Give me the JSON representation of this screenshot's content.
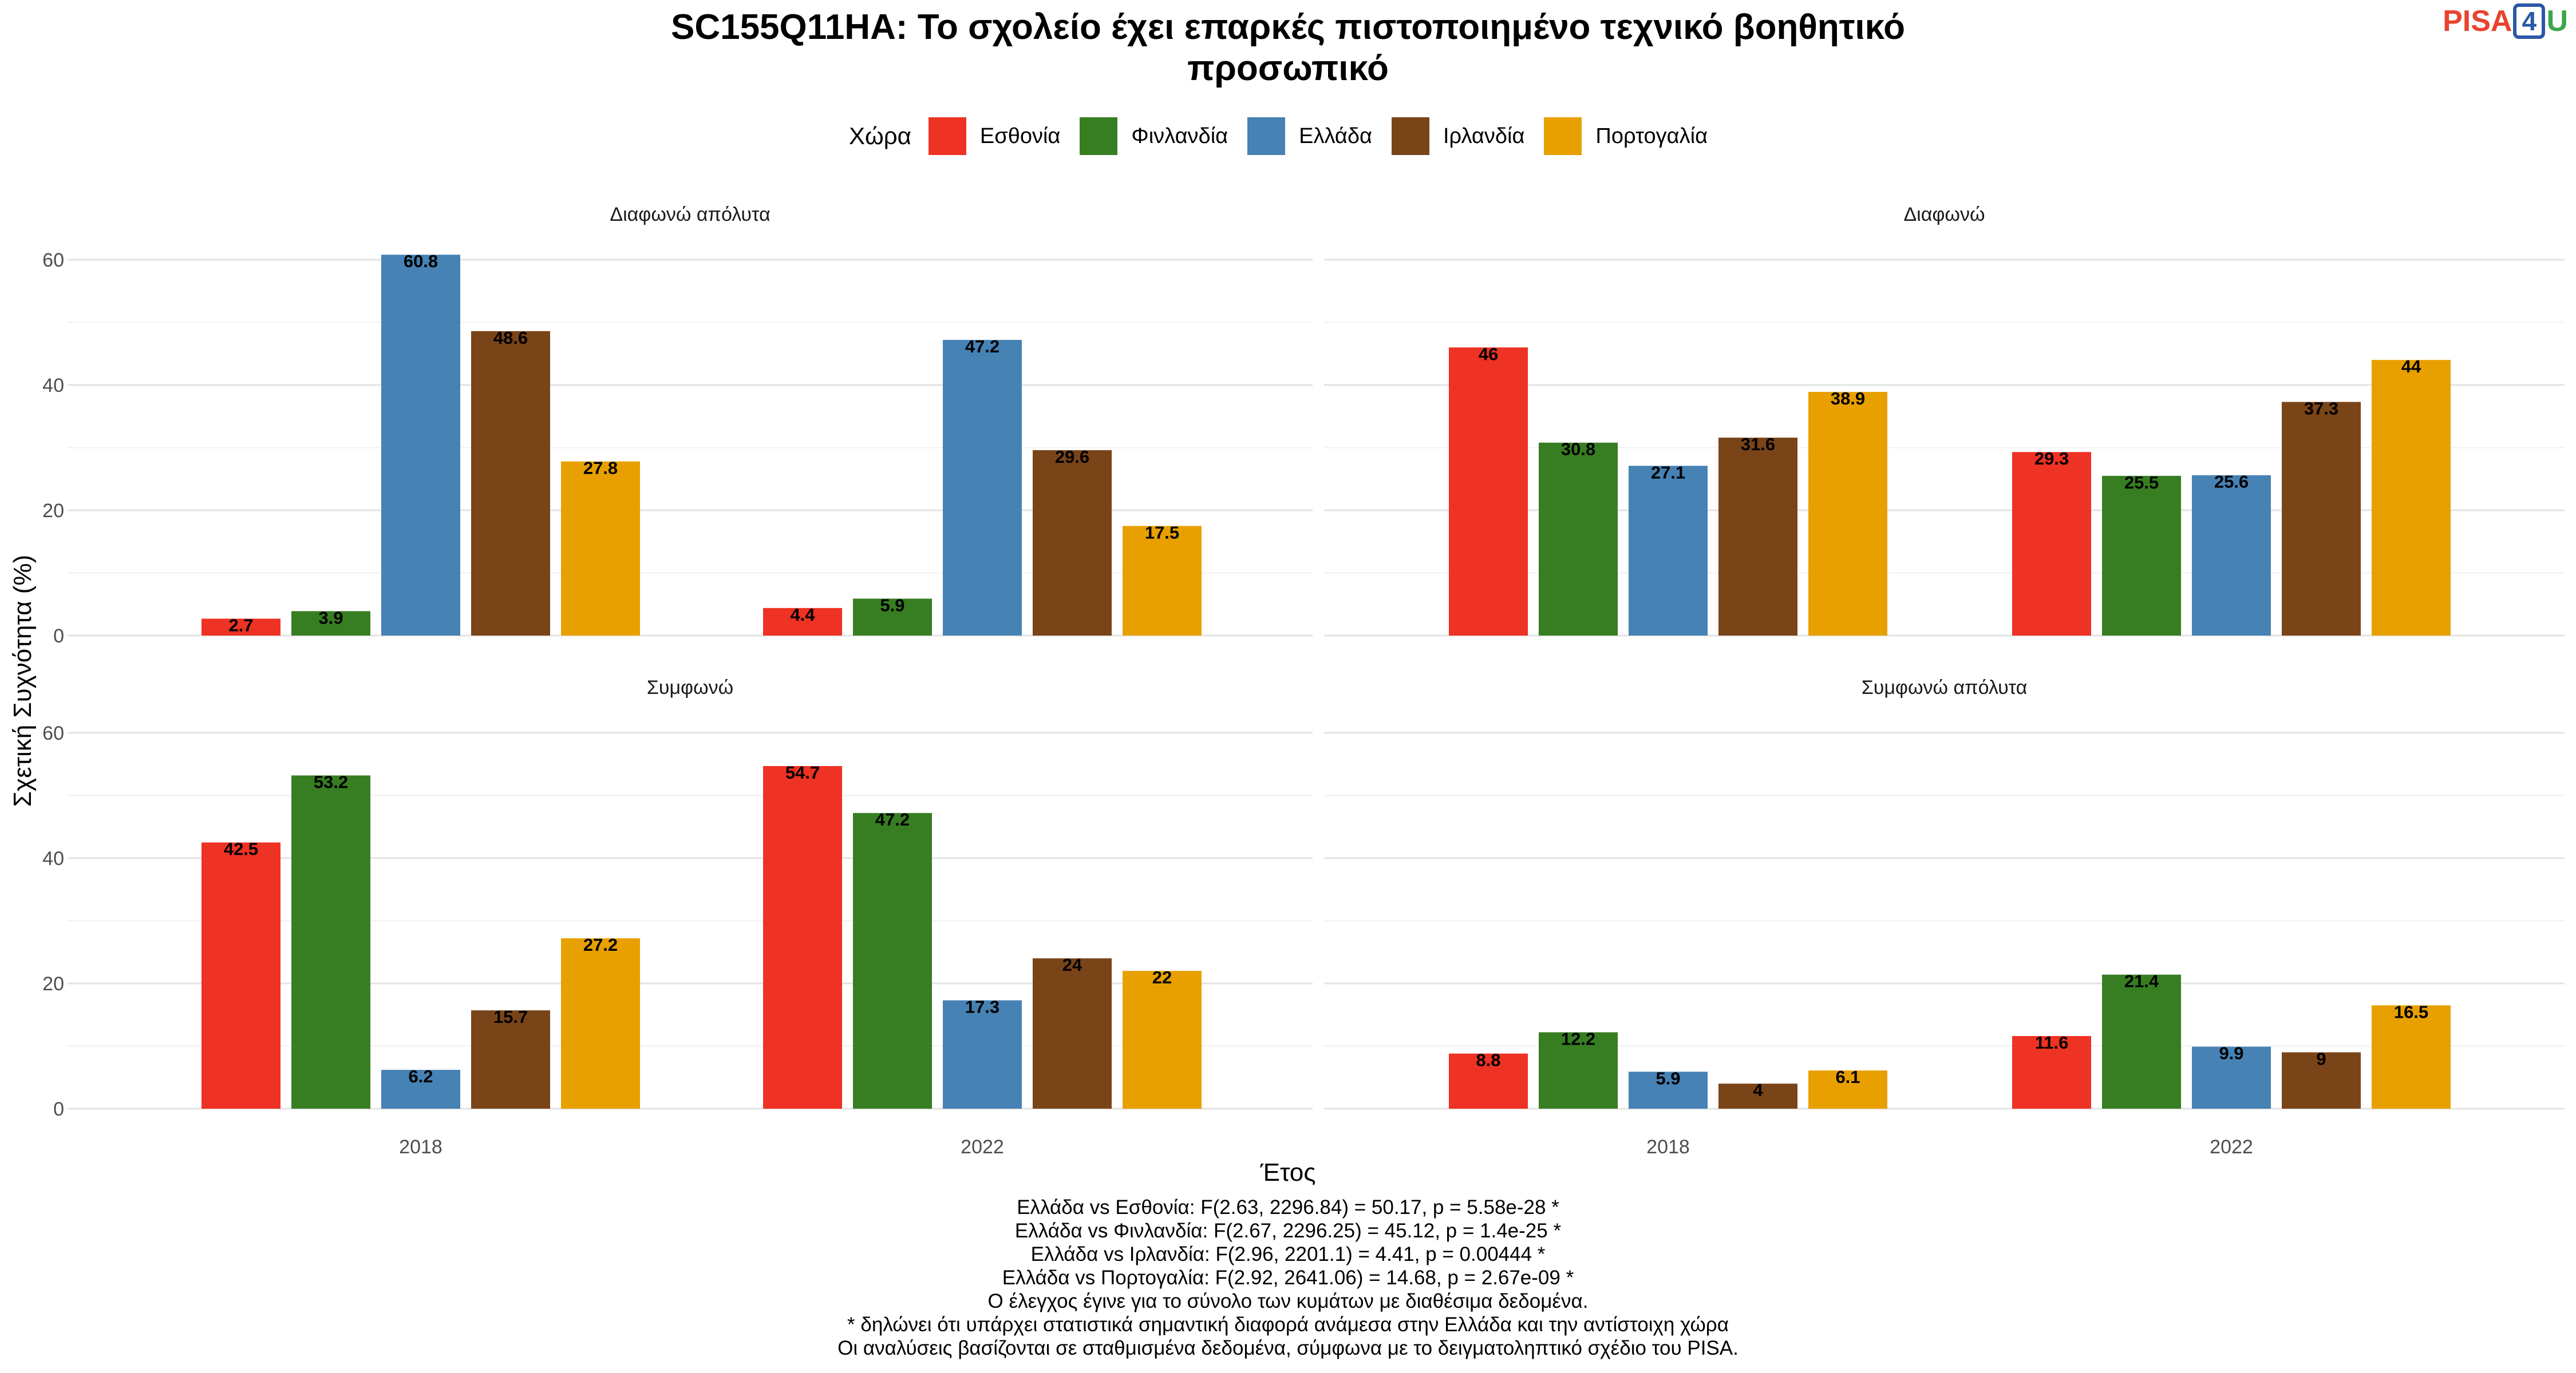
{
  "title_line1": "SC155Q11HA: Το σχολείο έχει επαρκές πιστοποιημένο τεχνικό βοηθητικό",
  "title_line2": "προσωπικό",
  "logo": {
    "pisa": "PISA",
    "four": "4",
    "u": "U"
  },
  "chart_data": {
    "type": "bar",
    "ylabel": "Σχετική Συχνότητα (%)",
    "xlabel": "Έτος",
    "legend_title": "Χώρα",
    "legend_position": "top",
    "grid": true,
    "ylim": [
      0,
      65
    ],
    "yticks": [
      0,
      20,
      40,
      60
    ],
    "categories": [
      "2018",
      "2022"
    ],
    "series_meta": [
      {
        "name": "Εσθονία",
        "color": "#ee3224"
      },
      {
        "name": "Φινλανδία",
        "color": "#377e22"
      },
      {
        "name": "Ελλάδα",
        "color": "#4682b4"
      },
      {
        "name": "Ιρλανδία",
        "color": "#7a4419"
      },
      {
        "name": "Πορτογαλία",
        "color": "#e8a000"
      }
    ],
    "panels": [
      {
        "label": "Διαφωνώ απόλυτα",
        "values": {
          "2018": [
            2.7,
            3.9,
            60.8,
            48.6,
            27.8
          ],
          "2022": [
            4.4,
            5.9,
            47.2,
            29.6,
            17.5
          ]
        }
      },
      {
        "label": "Διαφωνώ",
        "values": {
          "2018": [
            46,
            30.8,
            27.1,
            31.6,
            38.9
          ],
          "2022": [
            29.3,
            25.5,
            25.6,
            37.3,
            44
          ]
        }
      },
      {
        "label": "Συμφωνώ",
        "values": {
          "2018": [
            42.5,
            53.2,
            6.2,
            15.7,
            27.2
          ],
          "2022": [
            54.7,
            47.2,
            17.3,
            24,
            22
          ]
        }
      },
      {
        "label": "Συμφωνώ απόλυτα",
        "values": {
          "2018": [
            8.8,
            12.2,
            5.9,
            4,
            6.1
          ],
          "2022": [
            11.6,
            21.4,
            9.9,
            9,
            16.5
          ]
        }
      }
    ]
  },
  "footnotes": [
    "Ελλάδα vs Εσθονία: F(2.63, 2296.84) = 50.17, p = 5.58e-28 *",
    "Ελλάδα vs Φινλανδία: F(2.67, 2296.25) = 45.12, p = 1.4e-25 *",
    "Ελλάδα vs Ιρλανδία: F(2.96, 2201.1) = 4.41, p = 0.00444 *",
    "Ελλάδα vs Πορτογαλία: F(2.92, 2641.06) = 14.68, p = 2.67e-09 *",
    "Ο έλεγχος έγινε για το σύνολο των κυμάτων με διαθέσιμα δεδομένα.",
    "* δηλώνει ότι υπάρχει στατιστικά σημαντική διαφορά ανάμεσα στην Ελλάδα και την αντίστοιχη χώρα",
    "Οι αναλύσεις βασίζονται σε σταθμισμένα δεδομένα, σύμφωνα με το δειγματοληπτικό σχέδιο του PISA."
  ]
}
